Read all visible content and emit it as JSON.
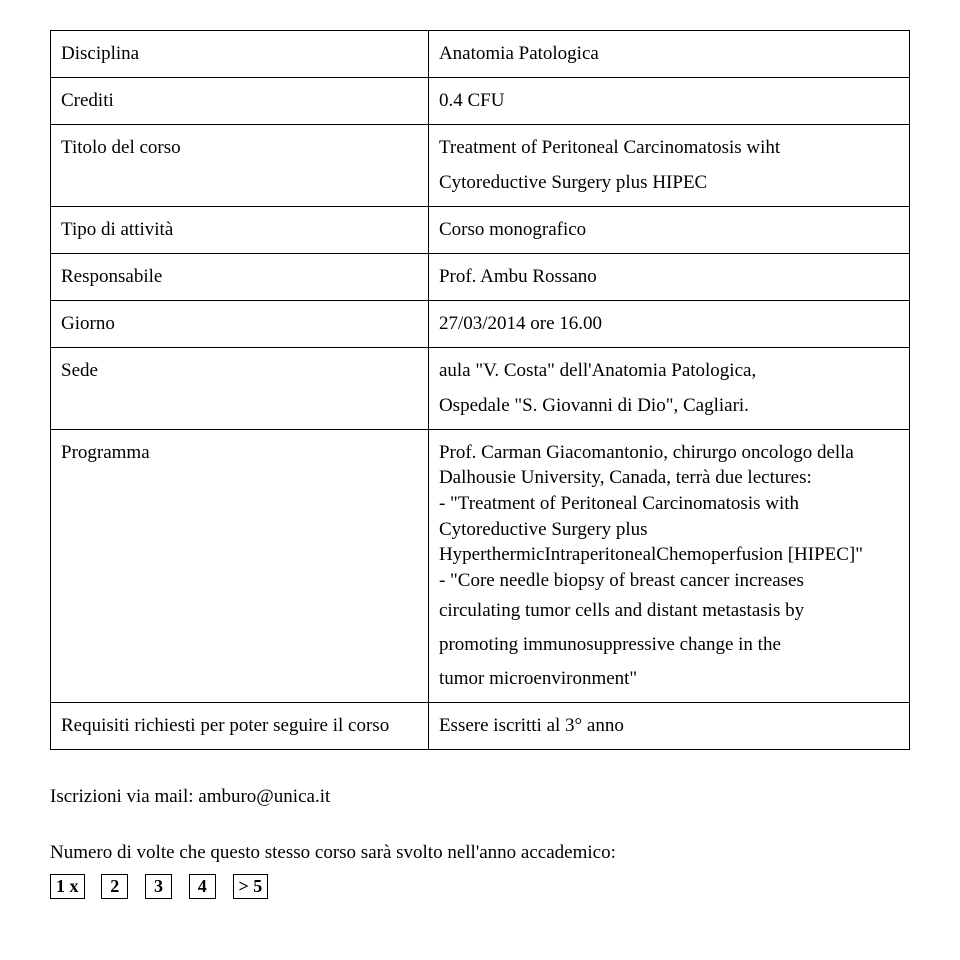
{
  "rows": {
    "disciplina": {
      "label": "Disciplina",
      "value": "Anatomia Patologica"
    },
    "crediti": {
      "label": "Crediti",
      "value": "0.4 CFU"
    },
    "titolo": {
      "label": "Titolo del corso",
      "line1": "Treatment of Peritoneal Carcinomatosis wiht",
      "line2": "Cytoreductive Surgery plus HIPEC"
    },
    "tipo": {
      "label": "Tipo di attività",
      "value": "Corso monografico"
    },
    "responsabile": {
      "label": "Responsabile",
      "value": "Prof. Ambu Rossano"
    },
    "giorno": {
      "label": "Giorno",
      "value": "27/03/2014 ore 16.00"
    },
    "sede": {
      "label": "Sede",
      "line1": "aula \"V. Costa\" dell'Anatomia Patologica,",
      "line2": "Ospedale \"S. Giovanni di Dio\", Cagliari."
    },
    "programma": {
      "label": "Programma",
      "p1": "Prof. Carman Giacomantonio, chirurgo oncologo della Dalhousie University, Canada, terrà due lectures:",
      "p2": "- \"Treatment of Peritoneal Carcinomatosis with Cytoreductive Surgery plus HyperthermicIntraperitonealChemoperfusion [HIPEC]\"",
      "p3": "- \"Core needle biopsy of breast cancer increases",
      "p4": "circulating tumor cells and distant metastasis by",
      "p5": "promoting immunosuppressive change in the",
      "p6": "tumor microenvironment\""
    },
    "requisiti": {
      "label": "Requisiti richiesti per poter seguire il corso",
      "value": "Essere iscritti al 3° anno"
    }
  },
  "footer": {
    "iscrizioni": "Iscrizioni via mail: amburo@unica.it",
    "numero": "Numero di volte che questo stesso corso sarà svolto nell'anno accademico:",
    "boxes": [
      "1 x",
      "2",
      "3",
      "4",
      "> 5"
    ]
  },
  "style": {
    "text_color": "#000000",
    "background_color": "#ffffff",
    "border_color": "#000000",
    "font_family": "Times New Roman",
    "base_fontsize": 19,
    "cell_line_height": 1.8,
    "prog_line_height": 1.35,
    "col_left_width_pct": 44,
    "col_right_width_pct": 56
  }
}
